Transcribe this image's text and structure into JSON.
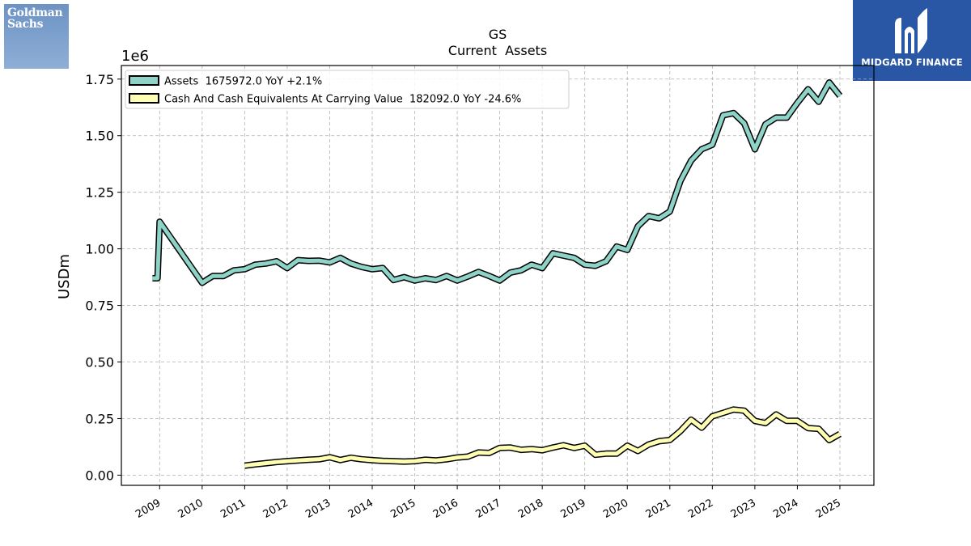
{
  "logos": {
    "left_text": "Goldman\nSachs",
    "right_text": "MIDGARD FINANCE"
  },
  "chart_data": {
    "type": "line",
    "title": "GS",
    "subtitle": "Current  Assets",
    "ylabel": "USDm",
    "y_multiplier": "1e6",
    "ylim": [
      -0.045,
      1.81
    ],
    "xlim": [
      2008.1,
      2025.8
    ],
    "yticks": [
      0.0,
      0.25,
      0.5,
      0.75,
      1.0,
      1.25,
      1.5,
      1.75
    ],
    "ytick_labels": [
      "0.00",
      "0.25",
      "0.50",
      "0.75",
      "1.00",
      "1.25",
      "1.50",
      "1.75"
    ],
    "xticks": [
      2009,
      2010,
      2011,
      2012,
      2013,
      2014,
      2015,
      2016,
      2017,
      2018,
      2019,
      2020,
      2021,
      2022,
      2023,
      2024,
      2025
    ],
    "xtick_labels": [
      "2009",
      "2010",
      "2011",
      "2012",
      "2013",
      "2014",
      "2015",
      "2016",
      "2017",
      "2018",
      "2019",
      "2020",
      "2021",
      "2022",
      "2023",
      "2024",
      "2025"
    ],
    "grid": true,
    "legend_position": "top-left",
    "series": [
      {
        "name": "Assets",
        "legend_label": "Assets  1675972.0 YoY +2.1%",
        "color": "#8dd3c7",
        "x": [
          2008.83,
          2008.95,
          2009.0,
          2010.0,
          2010.25,
          2010.5,
          2010.75,
          2011.0,
          2011.25,
          2011.5,
          2011.75,
          2012.0,
          2012.25,
          2012.5,
          2012.75,
          2013.0,
          2013.25,
          2013.5,
          2013.75,
          2014.0,
          2014.25,
          2014.5,
          2014.75,
          2015.0,
          2015.25,
          2015.5,
          2015.75,
          2016.0,
          2016.25,
          2016.5,
          2016.75,
          2017.0,
          2017.25,
          2017.5,
          2017.75,
          2018.0,
          2018.25,
          2018.5,
          2018.75,
          2019.0,
          2019.25,
          2019.5,
          2019.75,
          2020.0,
          2020.25,
          2020.5,
          2020.75,
          2021.0,
          2021.25,
          2021.5,
          2021.75,
          2022.0,
          2022.25,
          2022.5,
          2022.75,
          2023.0,
          2023.25,
          2023.5,
          2023.75,
          2024.0,
          2024.25,
          2024.5,
          2024.75,
          2025.0
        ],
        "y": [
          0.87,
          0.87,
          1.12,
          0.85,
          0.88,
          0.88,
          0.905,
          0.91,
          0.93,
          0.935,
          0.945,
          0.915,
          0.95,
          0.947,
          0.948,
          0.94,
          0.96,
          0.935,
          0.92,
          0.91,
          0.915,
          0.862,
          0.875,
          0.86,
          0.87,
          0.862,
          0.88,
          0.86,
          0.878,
          0.898,
          0.88,
          0.86,
          0.895,
          0.905,
          0.93,
          0.915,
          0.98,
          0.97,
          0.96,
          0.93,
          0.925,
          0.945,
          1.01,
          0.995,
          1.1,
          1.145,
          1.135,
          1.165,
          1.3,
          1.39,
          1.44,
          1.46,
          1.59,
          1.6,
          1.555,
          1.44,
          1.55,
          1.58,
          1.58,
          1.645,
          1.705,
          1.65,
          1.735,
          1.675972
        ]
      },
      {
        "name": "Cash And Cash Equivalents At Carrying Value",
        "legend_label": "Cash And Cash Equivalents At Carrying Value  182092.0 YoY -24.6%",
        "color": "#ffffb3",
        "x": [
          2011.0,
          2011.25,
          2011.5,
          2011.75,
          2012.0,
          2012.25,
          2012.5,
          2012.75,
          2013.0,
          2013.25,
          2013.5,
          2013.75,
          2014.0,
          2014.25,
          2014.5,
          2014.75,
          2015.0,
          2015.25,
          2015.5,
          2015.75,
          2016.0,
          2016.25,
          2016.5,
          2016.75,
          2017.0,
          2017.25,
          2017.5,
          2017.75,
          2018.0,
          2018.25,
          2018.5,
          2018.75,
          2019.0,
          2019.25,
          2019.5,
          2019.75,
          2020.0,
          2020.25,
          2020.5,
          2020.75,
          2021.0,
          2021.25,
          2021.5,
          2021.75,
          2022.0,
          2022.25,
          2022.5,
          2022.75,
          2023.0,
          2023.25,
          2023.5,
          2023.75,
          2024.0,
          2024.25,
          2024.5,
          2024.75,
          2025.0
        ],
        "y": [
          0.042,
          0.048,
          0.053,
          0.058,
          0.062,
          0.065,
          0.068,
          0.07,
          0.079,
          0.067,
          0.077,
          0.07,
          0.066,
          0.063,
          0.062,
          0.06,
          0.062,
          0.068,
          0.065,
          0.07,
          0.078,
          0.082,
          0.1,
          0.098,
          0.12,
          0.122,
          0.112,
          0.115,
          0.11,
          0.122,
          0.132,
          0.12,
          0.13,
          0.09,
          0.095,
          0.095,
          0.13,
          0.107,
          0.135,
          0.15,
          0.155,
          0.195,
          0.245,
          0.21,
          0.26,
          0.275,
          0.29,
          0.285,
          0.24,
          0.23,
          0.268,
          0.24,
          0.24,
          0.208,
          0.205,
          0.155,
          0.182092
        ]
      }
    ]
  }
}
